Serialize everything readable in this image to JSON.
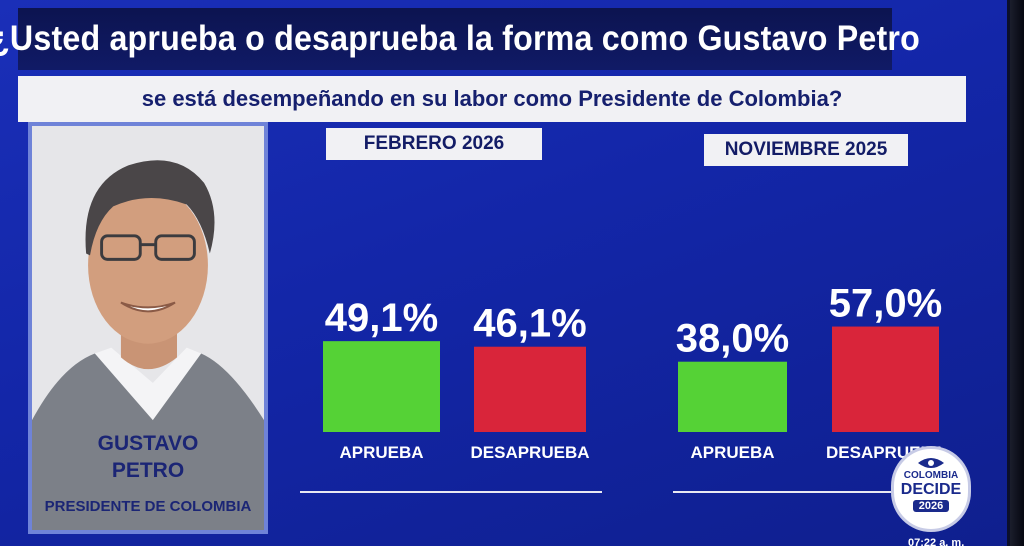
{
  "header": {
    "question_line1": "¿Usted aprueba o desaprueba la forma como Gustavo Petro",
    "question_line2": "se está desempeñando en su labor como Presidente de Colombia?"
  },
  "person": {
    "name_line1": "GUSTAVO",
    "name_line2": "PETRO",
    "role": "PRESIDENTE DE COLOMBIA"
  },
  "logo": {
    "line1": "COLOMBIA",
    "line2": "DECIDE",
    "line3": "2026"
  },
  "clock": "07:22 a. m.",
  "colors": {
    "aprueba": "#55d236",
    "desaprueba": "#d9253a",
    "background": "#1326a8"
  },
  "chart_data": [
    {
      "type": "bar",
      "period": "FEBRERO 2026",
      "categories": [
        "APRUEBA",
        "DESAPRUEBA"
      ],
      "values": [
        49.1,
        46.1
      ],
      "value_labels": [
        "49,1%",
        "46,1%"
      ],
      "unit": "%"
    },
    {
      "type": "bar",
      "period": "NOVIEMBRE 2025",
      "categories": [
        "APRUEBA",
        "DESAPRUEBA"
      ],
      "values": [
        38.0,
        57.0
      ],
      "value_labels": [
        "38,0%",
        "57,0%"
      ],
      "unit": "%"
    }
  ]
}
